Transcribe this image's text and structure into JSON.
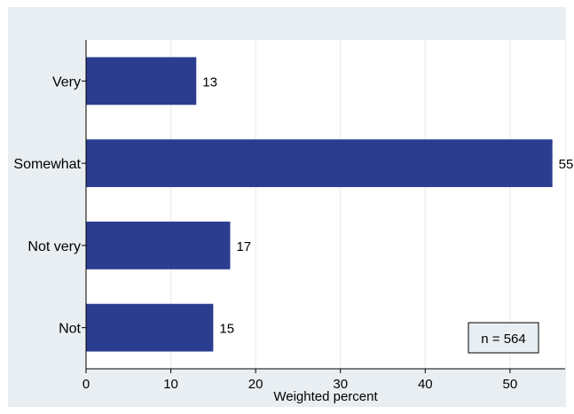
{
  "chart_data": {
    "type": "bar",
    "orientation": "horizontal",
    "categories": [
      "Very",
      "Somewhat",
      "Not very",
      "Not"
    ],
    "values": [
      13,
      55,
      17,
      15
    ],
    "data_labels": [
      "13",
      "55",
      "17",
      "15"
    ],
    "xlabel": "Weighted percent",
    "ylabel": "",
    "title": "",
    "xlim": [
      0,
      56.5
    ],
    "xticks": [
      0,
      10,
      20,
      30,
      40,
      50
    ],
    "xtick_labels": [
      "0",
      "10",
      "20",
      "30",
      "40",
      "50"
    ],
    "grid": "vertical",
    "annotation": "n = 564",
    "annotation_position": "bottom-right",
    "colors": {
      "bar": "#2b3d8f",
      "frame_background": "#e8eef2",
      "plot_background": "#ffffff",
      "grid": "#e6e9ec",
      "annotation_background": "#e8eef2"
    }
  }
}
